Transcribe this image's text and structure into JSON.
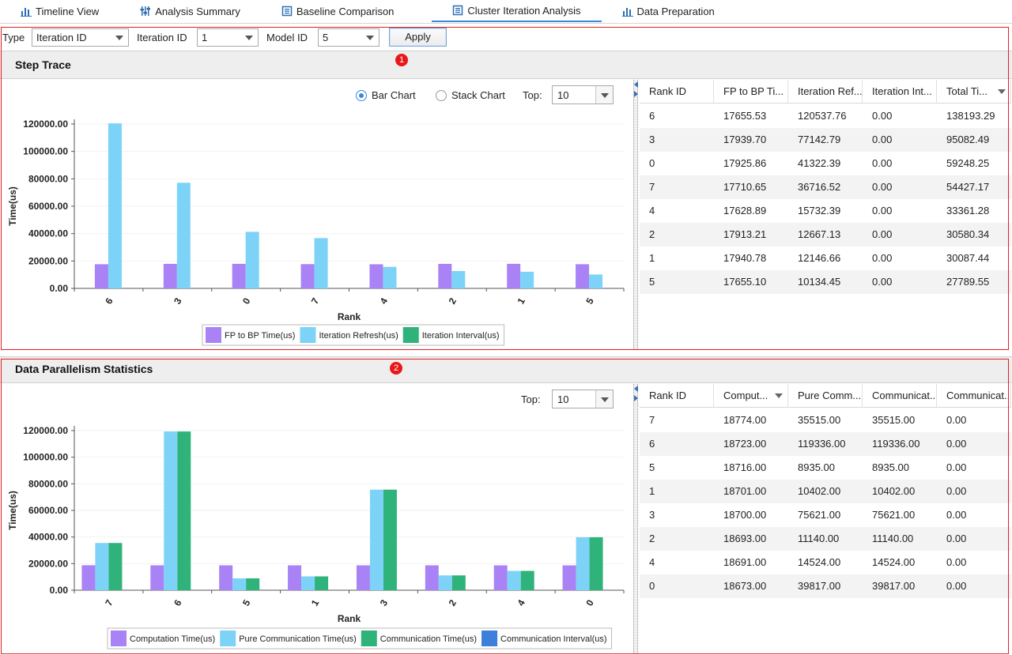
{
  "tabs": [
    {
      "label": "Timeline View",
      "icon": "bar-chart-icon"
    },
    {
      "label": "Analysis Summary",
      "icon": "sliders-icon"
    },
    {
      "label": "Baseline Comparison",
      "icon": "document-icon"
    },
    {
      "label": "Cluster Iteration Analysis",
      "icon": "document-icon"
    },
    {
      "label": "Data Preparation",
      "icon": "bar-chart-icon"
    }
  ],
  "filters": {
    "type_label": "Type",
    "type_value": "Iteration ID",
    "iteration_label": "Iteration ID",
    "iteration_value": "1",
    "model_label": "Model ID",
    "model_value": "5",
    "apply_label": "Apply"
  },
  "step_trace": {
    "title": "Step Trace",
    "badge": "1",
    "radio_bar": "Bar Chart",
    "radio_stack": "Stack Chart",
    "top_label": "Top:",
    "top_value": "10",
    "columns": [
      "Rank ID",
      "FP to BP Ti...",
      "Iteration Ref...",
      "Iteration Int...",
      "Total Ti..."
    ],
    "rows": [
      [
        "6",
        "17655.53",
        "120537.76",
        "0.00",
        "138193.29"
      ],
      [
        "3",
        "17939.70",
        "77142.79",
        "0.00",
        "95082.49"
      ],
      [
        "0",
        "17925.86",
        "41322.39",
        "0.00",
        "59248.25"
      ],
      [
        "7",
        "17710.65",
        "36716.52",
        "0.00",
        "54427.17"
      ],
      [
        "4",
        "17628.89",
        "15732.39",
        "0.00",
        "33361.28"
      ],
      [
        "2",
        "17913.21",
        "12667.13",
        "0.00",
        "30580.34"
      ],
      [
        "1",
        "17940.78",
        "12146.66",
        "0.00",
        "30087.44"
      ],
      [
        "5",
        "17655.10",
        "10134.45",
        "0.00",
        "27789.55"
      ]
    ]
  },
  "dp_stats": {
    "title": "Data Parallelism Statistics",
    "badge": "2",
    "top_label": "Top:",
    "top_value": "10",
    "columns": [
      "Rank ID",
      "Comput...",
      "Pure Comm...",
      "Communicat...",
      "Communicat..."
    ],
    "rows": [
      [
        "7",
        "18774.00",
        "35515.00",
        "35515.00",
        "0.00"
      ],
      [
        "6",
        "18723.00",
        "119336.00",
        "119336.00",
        "0.00"
      ],
      [
        "5",
        "18716.00",
        "8935.00",
        "8935.00",
        "0.00"
      ],
      [
        "1",
        "18701.00",
        "10402.00",
        "10402.00",
        "0.00"
      ],
      [
        "3",
        "18700.00",
        "75621.00",
        "75621.00",
        "0.00"
      ],
      [
        "2",
        "18693.00",
        "11140.00",
        "11140.00",
        "0.00"
      ],
      [
        "4",
        "18691.00",
        "14524.00",
        "14524.00",
        "0.00"
      ],
      [
        "0",
        "18673.00",
        "39817.00",
        "39817.00",
        "0.00"
      ]
    ]
  },
  "chart_data": [
    {
      "type": "bar",
      "xlabel": "Rank",
      "ylabel": "Time(us)",
      "ylim": [
        0,
        120000
      ],
      "yticks": [
        "0.00",
        "20000.00",
        "40000.00",
        "60000.00",
        "80000.00",
        "100000.00",
        "120000.00"
      ],
      "categories": [
        "6",
        "3",
        "0",
        "7",
        "4",
        "2",
        "1",
        "5"
      ],
      "legend_position": "bottom",
      "series": [
        {
          "name": "FP to BP Time(us)",
          "color": "#a983f5",
          "values": [
            17655.53,
            17939.7,
            17925.86,
            17710.65,
            17628.89,
            17913.21,
            17940.78,
            17655.1
          ]
        },
        {
          "name": "Iteration Refresh(us)",
          "color": "#7dd3f7",
          "values": [
            120537.76,
            77142.79,
            41322.39,
            36716.52,
            15732.39,
            12667.13,
            12146.66,
            10134.45
          ]
        },
        {
          "name": "Iteration Interval(us)",
          "color": "#2fb37a",
          "values": [
            0,
            0,
            0,
            0,
            0,
            0,
            0,
            0
          ]
        }
      ]
    },
    {
      "type": "bar",
      "xlabel": "Rank",
      "ylabel": "Time(us)",
      "ylim": [
        0,
        120000
      ],
      "yticks": [
        "0.00",
        "20000.00",
        "40000.00",
        "60000.00",
        "80000.00",
        "100000.00",
        "120000.00"
      ],
      "categories": [
        "7",
        "6",
        "5",
        "1",
        "3",
        "2",
        "4",
        "0"
      ],
      "legend_position": "bottom",
      "series": [
        {
          "name": "Computation Time(us)",
          "color": "#a983f5",
          "values": [
            18774,
            18723,
            18716,
            18701,
            18700,
            18693,
            18691,
            18673
          ]
        },
        {
          "name": "Pure Communication Time(us)",
          "color": "#7dd3f7",
          "values": [
            35515,
            119336,
            8935,
            10402,
            75621,
            11140,
            14524,
            39817
          ]
        },
        {
          "name": "Communication Time(us)",
          "color": "#2fb37a",
          "values": [
            35515,
            119336,
            8935,
            10402,
            75621,
            11140,
            14524,
            39817
          ]
        },
        {
          "name": "Communication Interval(us)",
          "color": "#3d7fdb",
          "values": [
            0,
            0,
            0,
            0,
            0,
            0,
            0,
            0
          ]
        }
      ]
    }
  ]
}
